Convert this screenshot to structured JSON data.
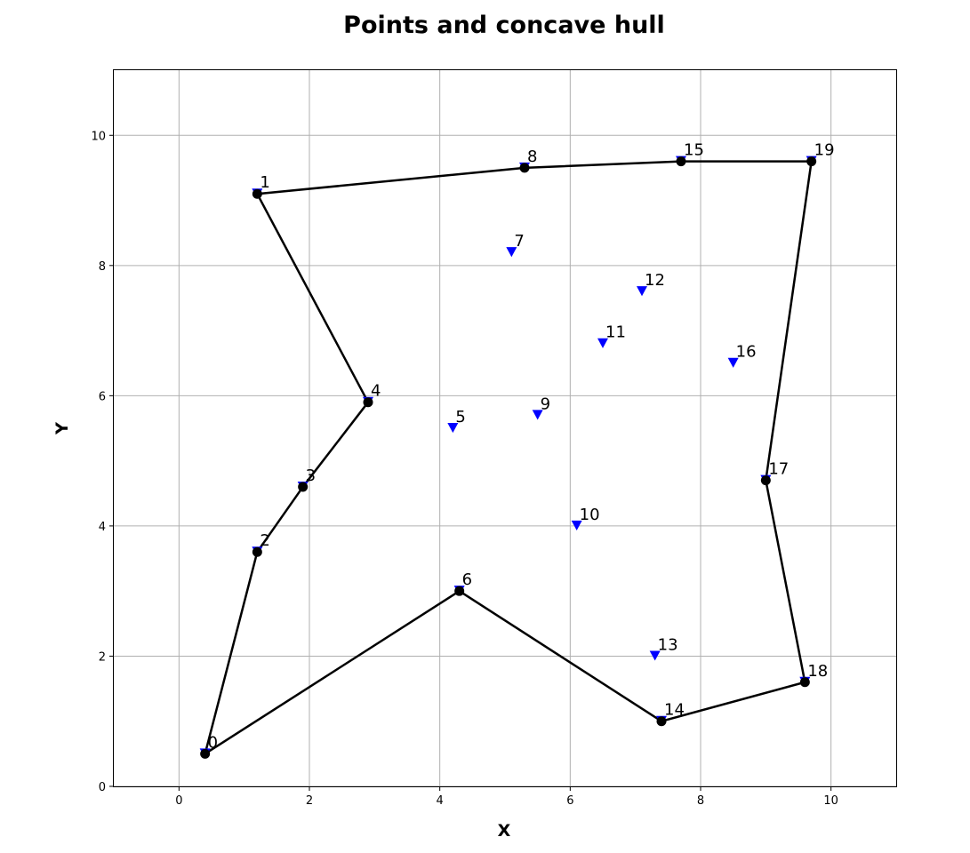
{
  "chart_data": {
    "type": "scatter",
    "title": "Points and concave hull",
    "xlabel": "X",
    "ylabel": "Y",
    "xlim": [
      -1,
      11
    ],
    "ylim": [
      0,
      11
    ],
    "xticks": [
      "0",
      "2",
      "4",
      "6",
      "8",
      "10"
    ],
    "yticks": [
      "0",
      "2",
      "4",
      "6",
      "8",
      "10"
    ],
    "grid": true,
    "points": [
      {
        "label": "0",
        "x": 0.4,
        "y": 0.5
      },
      {
        "label": "1",
        "x": 1.2,
        "y": 9.1
      },
      {
        "label": "2",
        "x": 1.2,
        "y": 3.6
      },
      {
        "label": "3",
        "x": 1.9,
        "y": 4.6
      },
      {
        "label": "4",
        "x": 2.9,
        "y": 5.9
      },
      {
        "label": "5",
        "x": 4.2,
        "y": 5.5
      },
      {
        "label": "6",
        "x": 4.3,
        "y": 3.0
      },
      {
        "label": "7",
        "x": 5.1,
        "y": 8.2
      },
      {
        "label": "8",
        "x": 5.3,
        "y": 9.5
      },
      {
        "label": "9",
        "x": 5.5,
        "y": 5.7
      },
      {
        "label": "10",
        "x": 6.1,
        "y": 4.0
      },
      {
        "label": "11",
        "x": 6.5,
        "y": 6.8
      },
      {
        "label": "12",
        "x": 7.1,
        "y": 7.6
      },
      {
        "label": "13",
        "x": 7.3,
        "y": 2.0
      },
      {
        "label": "14",
        "x": 7.4,
        "y": 1.0
      },
      {
        "label": "15",
        "x": 7.7,
        "y": 9.6
      },
      {
        "label": "16",
        "x": 8.5,
        "y": 6.5
      },
      {
        "label": "17",
        "x": 9.0,
        "y": 4.7
      },
      {
        "label": "18",
        "x": 9.6,
        "y": 1.6
      },
      {
        "label": "19",
        "x": 9.7,
        "y": 9.6
      }
    ],
    "hull_order": [
      0,
      2,
      3,
      4,
      1,
      8,
      15,
      19,
      17,
      18,
      14,
      6,
      0
    ],
    "point_marker": "triangle-down",
    "hull_marker": "circle",
    "colors": {
      "points": "#0000ff",
      "hull": "#000000",
      "grid": "#b0b0b0"
    }
  }
}
